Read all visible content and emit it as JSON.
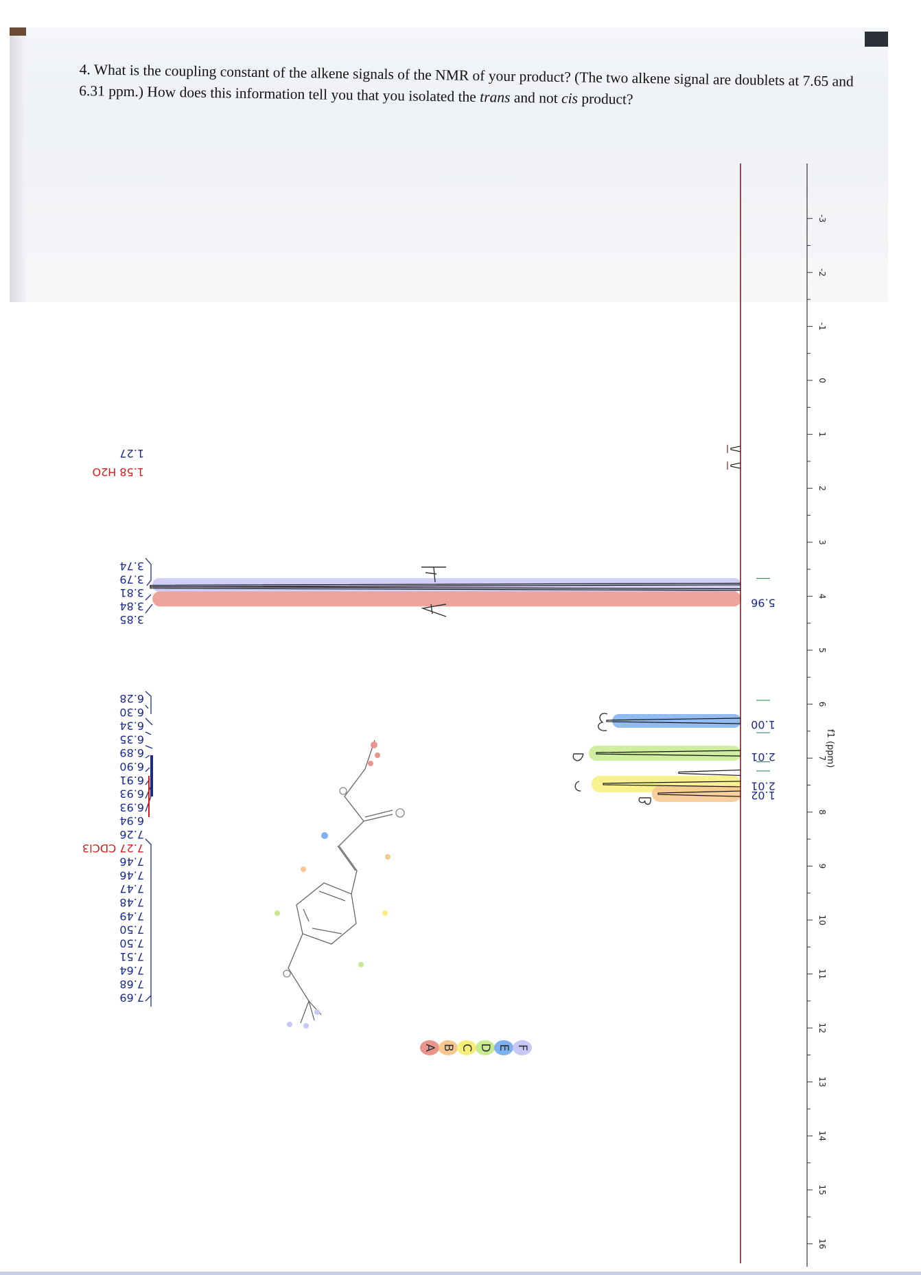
{
  "question": {
    "part1": "4. What is the coupling constant of the alkene signals of the NMR of your product? (The two alkene signal are doublets at 7.65 and 6.31 ppm.) How does this information tell you that you isolated the ",
    "trans": "trans",
    "part2": " and not ",
    "cis": "cis",
    "part3": " product?"
  },
  "peak_labels": {
    "group1": [
      "1.27",
      "1.58 H2O"
    ],
    "group2": [
      "3.74",
      "3.79",
      "3.81",
      "3.84",
      "3.85"
    ],
    "group3": [
      "6.28",
      "6.30",
      "6.34",
      "6.35",
      "6.89",
      "6.90",
      "6.91",
      "6.93",
      "6.93",
      "6.94",
      "7.26",
      "7.27 CDCl3",
      "7.46",
      "7.46",
      "7.47",
      "7.48",
      "7.49",
      "7.50",
      "7.50",
      "7.51",
      "7.64",
      "7.68",
      "7.69"
    ]
  },
  "integrals": [
    "5.96",
    "1.00",
    "2.01",
    "2.01",
    "1.02"
  ],
  "handwritten_letters": [
    "F",
    "A",
    "E",
    "D",
    "C",
    "B"
  ],
  "legend_letters": [
    "A",
    "B",
    "C",
    "D",
    "E",
    "F"
  ],
  "axis": {
    "label": "f1 (ppm)",
    "ticks": [
      "-3",
      "-2",
      "-1",
      "0",
      "1",
      "2",
      "3",
      "4",
      "5",
      "6",
      "7",
      "8",
      "9",
      "10",
      "11",
      "12",
      "13",
      "14",
      "15",
      "16"
    ]
  },
  "colors": {
    "spectrum": "#8b1a1a",
    "label_blue": "#1a2a8f",
    "label_red": "#d21d1d",
    "highlight_A": "#e9948c",
    "highlight_B": "#f6c78e",
    "highlight_C": "#f7ef7c",
    "highlight_D": "#c7eb8f",
    "highlight_E": "#7fb0ef",
    "highlight_F": "#c9c7f4"
  },
  "chart_data": {
    "type": "line",
    "title": "",
    "xlabel": "f1 (ppm)",
    "ylabel": "",
    "xlim": [
      -3.5,
      16.2
    ],
    "orientation": "rotated-180 spectrum",
    "peaks_ppm": [
      1.27,
      1.58,
      3.81,
      3.84,
      6.31,
      6.91,
      7.27,
      7.48,
      7.66
    ],
    "integrations": [
      {
        "ppm": 3.82,
        "value": 5.96,
        "label": "A/F"
      },
      {
        "ppm": 6.31,
        "value": 1.0,
        "label": "E"
      },
      {
        "ppm": 6.91,
        "value": 2.01,
        "label": "D"
      },
      {
        "ppm": 7.48,
        "value": 2.01,
        "label": "C"
      },
      {
        "ppm": 7.66,
        "value": 1.02,
        "label": "B"
      }
    ]
  }
}
